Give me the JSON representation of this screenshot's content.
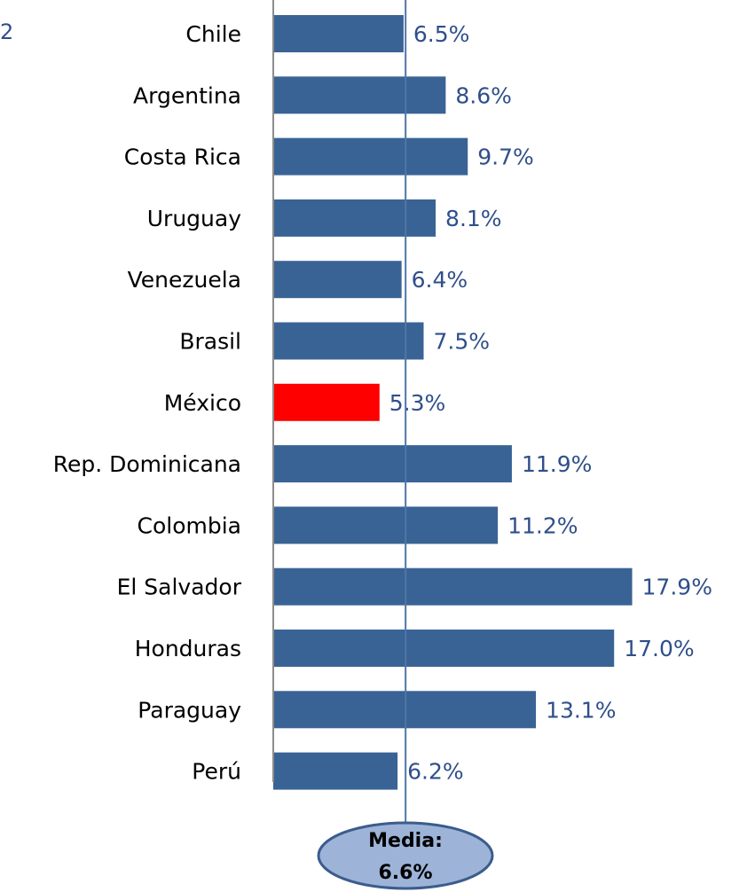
{
  "edge_fragment": "2",
  "colors": {
    "bar": "#3a6395",
    "highlight": "#ff0000",
    "label": "#2f4f8a",
    "axis": "#8c8c8c",
    "mean_line": "#4f76a8",
    "callout_fill": "#9db4d8",
    "callout_stroke": "#3b5c8c"
  },
  "chart_data": {
    "type": "bar",
    "orientation": "horizontal",
    "categories": [
      "Chile",
      "Argentina",
      "Costa Rica",
      "Uruguay",
      "Venezuela",
      "Brasil",
      "México",
      "Rep. Dominicana",
      "Colombia",
      "El Salvador",
      "Honduras",
      "Paraguay",
      "Perú"
    ],
    "values": [
      6.5,
      8.6,
      9.7,
      8.1,
      6.4,
      7.5,
      5.3,
      11.9,
      11.2,
      17.9,
      17.0,
      13.1,
      6.2
    ],
    "value_labels": [
      "6.5%",
      "8.6%",
      "9.7%",
      "8.1%",
      "6.4%",
      "7.5%",
      "5.3%",
      "11.9%",
      "11.2%",
      "17.9%",
      "17.0%",
      "13.1%",
      "6.2%"
    ],
    "highlight_category": "México",
    "xlim": [
      0,
      18
    ],
    "reference_line": {
      "value": 6.6
    },
    "callout": {
      "line1": "Media:",
      "line2": "6.6%"
    },
    "grid": false,
    "legend": false
  }
}
